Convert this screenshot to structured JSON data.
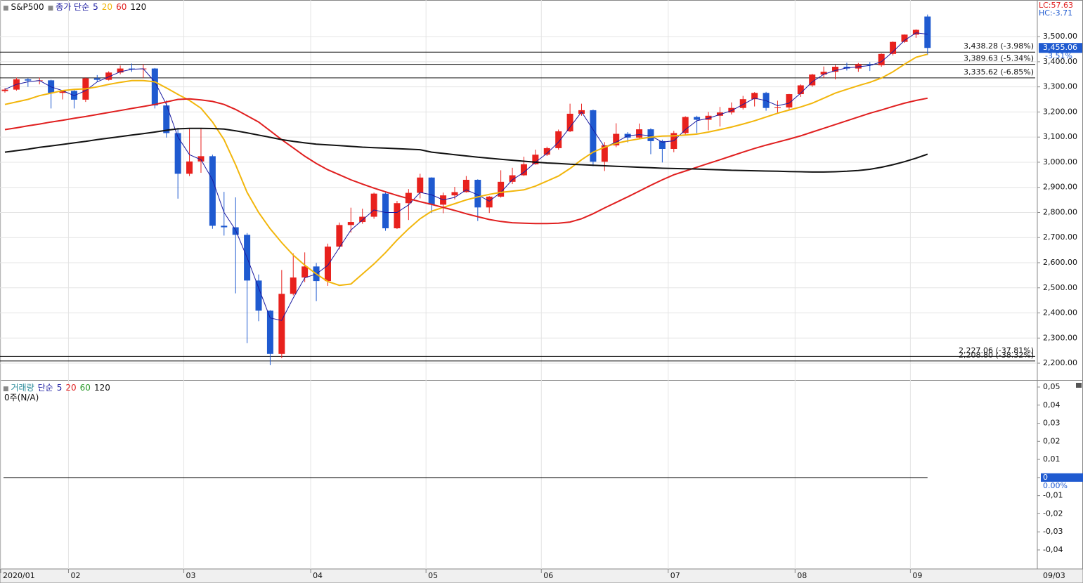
{
  "chart_data": [
    {
      "type": "candlestick",
      "title": "S&P500",
      "ma_label": "종가 단순",
      "categories": [
        "2020/01",
        null,
        null,
        null,
        null,
        null,
        "02",
        null,
        null,
        null,
        null,
        null,
        null,
        null,
        null,
        null,
        "03",
        null,
        null,
        null,
        null,
        null,
        null,
        null,
        null,
        null,
        null,
        "04",
        null,
        null,
        null,
        null,
        null,
        null,
        null,
        null,
        null,
        "05",
        null,
        null,
        null,
        null,
        null,
        null,
        null,
        null,
        null,
        "06",
        null,
        null,
        null,
        null,
        null,
        null,
        null,
        null,
        null,
        null,
        "07",
        null,
        null,
        null,
        null,
        null,
        null,
        null,
        null,
        null,
        null,
        "08",
        null,
        null,
        null,
        null,
        null,
        null,
        null,
        null,
        null,
        "09",
        null
      ],
      "open": [
        3283,
        3289,
        3330,
        3325,
        3326,
        3276,
        3284,
        3249,
        3334,
        3328,
        3357,
        3373,
        3370,
        3373,
        3226,
        3116,
        2954,
        3003,
        3024,
        2747,
        2741,
        2711,
        2529,
        2409,
        2237,
        2476,
        2541,
        2585,
        2527,
        2664,
        2750,
        2762,
        2783,
        2875,
        2737,
        2837,
        2878,
        2939,
        2831,
        2868,
        2881,
        2930,
        2820,
        2863,
        2922,
        2948,
        2992,
        3030,
        3056,
        3123,
        3193,
        3207,
        3002,
        3067,
        3113,
        3098,
        3131,
        3084,
        3053,
        3116,
        3180,
        3169,
        3185,
        3198,
        3216,
        3251,
        3276,
        3216,
        3218,
        3271,
        3306,
        3349,
        3360,
        3380,
        3373,
        3390,
        3386,
        3431,
        3479,
        3508,
        3580
      ],
      "high": [
        3295,
        3337,
        3335,
        3337,
        3328,
        3286,
        3287,
        3338,
        3347,
        3362,
        3385,
        3393,
        3390,
        3375,
        3246,
        3137,
        3136,
        3137,
        3030,
        2882,
        2860,
        2718,
        2553,
        2411,
        2571,
        2637,
        2641,
        2599,
        2676,
        2760,
        2819,
        2815,
        2879,
        2879,
        2846,
        2893,
        2954,
        2940,
        2879,
        2902,
        2945,
        2932,
        2865,
        2968,
        2978,
        3022,
        3050,
        3062,
        3130,
        3233,
        3233,
        3210,
        3080,
        3155,
        3120,
        3154,
        3135,
        3090,
        3125,
        3183,
        3185,
        3200,
        3220,
        3238,
        3264,
        3279,
        3280,
        3245,
        3272,
        3310,
        3352,
        3381,
        3387,
        3396,
        3395,
        3399,
        3433,
        3481,
        3509,
        3529,
        3588
      ],
      "low": [
        3277,
        3285,
        3300,
        3310,
        3214,
        3250,
        3214,
        3240,
        3320,
        3325,
        3350,
        3360,
        3335,
        3214,
        3098,
        2855,
        2945,
        2958,
        2735,
        2708,
        2478,
        2280,
        2367,
        2192,
        2220,
        2470,
        2523,
        2447,
        2508,
        2654,
        2720,
        2755,
        2775,
        2727,
        2734,
        2770,
        2856,
        2798,
        2797,
        2852,
        2879,
        2766,
        2798,
        2859,
        2913,
        2945,
        2990,
        3025,
        3050,
        3120,
        3185,
        2984,
        2965,
        3060,
        3079,
        3093,
        3032,
        2999,
        3040,
        3110,
        3116,
        3127,
        3142,
        3190,
        3210,
        3222,
        3205,
        3195,
        3210,
        3260,
        3300,
        3335,
        3330,
        3365,
        3360,
        3363,
        3380,
        3425,
        3475,
        3495,
        3427
      ],
      "close": [
        3289,
        3330,
        3325,
        3326,
        3276,
        3284,
        3249,
        3334,
        3328,
        3357,
        3373,
        3370,
        3373,
        3226,
        3116,
        2954,
        3003,
        3024,
        2747,
        2741,
        2711,
        2529,
        2409,
        2237,
        2476,
        2541,
        2585,
        2527,
        2664,
        2750,
        2762,
        2783,
        2875,
        2737,
        2837,
        2878,
        2939,
        2831,
        2868,
        2881,
        2930,
        2820,
        2863,
        2922,
        2948,
        2992,
        3030,
        3056,
        3123,
        3193,
        3207,
        3002,
        3067,
        3113,
        3098,
        3131,
        3084,
        3053,
        3116,
        3180,
        3169,
        3185,
        3198,
        3216,
        3251,
        3276,
        3216,
        3218,
        3271,
        3306,
        3349,
        3360,
        3380,
        3373,
        3390,
        3386,
        3431,
        3479,
        3508,
        3527,
        3455
      ],
      "up_color": "#e8211d",
      "down_color": "#1f5ad0",
      "series": [
        {
          "name": "5",
          "color": "#1a1aa0",
          "values": [
            3290,
            3310,
            3320,
            3325,
            3300,
            3285,
            3265,
            3285,
            3320,
            3340,
            3360,
            3370,
            3372,
            3320,
            3230,
            3100,
            3030,
            3010,
            2930,
            2800,
            2730,
            2620,
            2500,
            2380,
            2370,
            2460,
            2540,
            2555,
            2590,
            2660,
            2730,
            2770,
            2810,
            2800,
            2800,
            2830,
            2880,
            2870,
            2850,
            2860,
            2890,
            2870,
            2845,
            2880,
            2930,
            2960,
            3000,
            3035,
            3080,
            3140,
            3200,
            3130,
            3060,
            3080,
            3105,
            3110,
            3105,
            3080,
            3085,
            3130,
            3165,
            3175,
            3190,
            3205,
            3230,
            3255,
            3245,
            3225,
            3235,
            3275,
            3320,
            3350,
            3365,
            3375,
            3380,
            3385,
            3400,
            3440,
            3485,
            3515,
            3510
          ]
        },
        {
          "name": "20",
          "color": "#f2b60c",
          "values": [
            3230,
            3240,
            3250,
            3265,
            3275,
            3285,
            3290,
            3292,
            3300,
            3310,
            3318,
            3325,
            3325,
            3320,
            3296,
            3270,
            3246,
            3215,
            3160,
            3090,
            2990,
            2880,
            2800,
            2735,
            2680,
            2630,
            2590,
            2555,
            2525,
            2510,
            2515,
            2555,
            2595,
            2640,
            2690,
            2735,
            2775,
            2805,
            2820,
            2835,
            2850,
            2862,
            2872,
            2880,
            2885,
            2890,
            2905,
            2925,
            2945,
            2975,
            3010,
            3040,
            3060,
            3075,
            3085,
            3093,
            3100,
            3104,
            3105,
            3108,
            3112,
            3120,
            3130,
            3140,
            3152,
            3165,
            3180,
            3195,
            3208,
            3220,
            3235,
            3255,
            3275,
            3290,
            3305,
            3318,
            3335,
            3360,
            3390,
            3418,
            3430
          ]
        },
        {
          "name": "60",
          "color": "#e01f1f",
          "values": [
            3130,
            3137,
            3145,
            3152,
            3160,
            3167,
            3175,
            3182,
            3190,
            3198,
            3206,
            3214,
            3222,
            3230,
            3240,
            3250,
            3252,
            3248,
            3242,
            3230,
            3210,
            3185,
            3160,
            3125,
            3090,
            3057,
            3024,
            2995,
            2970,
            2950,
            2930,
            2913,
            2897,
            2882,
            2868,
            2855,
            2843,
            2832,
            2820,
            2808,
            2795,
            2783,
            2772,
            2764,
            2759,
            2757,
            2756,
            2756,
            2757,
            2762,
            2775,
            2795,
            2818,
            2840,
            2862,
            2885,
            2908,
            2930,
            2950,
            2965,
            2980,
            2995,
            3010,
            3025,
            3040,
            3055,
            3068,
            3080,
            3092,
            3105,
            3120,
            3135,
            3150,
            3165,
            3180,
            3195,
            3208,
            3222,
            3235,
            3246,
            3255
          ]
        },
        {
          "name": "120",
          "color": "#111111",
          "values": [
            3040,
            3046,
            3052,
            3059,
            3065,
            3071,
            3077,
            3083,
            3090,
            3096,
            3102,
            3108,
            3114,
            3120,
            3127,
            3133,
            3135,
            3135,
            3134,
            3132,
            3125,
            3117,
            3108,
            3099,
            3090,
            3083,
            3077,
            3072,
            3069,
            3066,
            3063,
            3060,
            3058,
            3056,
            3054,
            3052,
            3050,
            3040,
            3035,
            3030,
            3025,
            3020,
            3016,
            3012,
            3008,
            3004,
            3000,
            2997,
            2995,
            2992,
            2990,
            2988,
            2986,
            2984,
            2982,
            2980,
            2978,
            2976,
            2975,
            2974,
            2973,
            2971,
            2970,
            2968,
            2967,
            2966,
            2965,
            2964,
            2963,
            2962,
            2961,
            2961,
            2962,
            2964,
            2967,
            2972,
            2980,
            2990,
            3002,
            3016,
            3032
          ]
        }
      ],
      "ylim": [
        2133,
        3643
      ],
      "yticks": [
        {
          "value": 2200,
          "label": "2,200.00"
        },
        {
          "value": 2300,
          "label": "2,300.00"
        },
        {
          "value": 2400,
          "label": "2,400.00"
        },
        {
          "value": 2500,
          "label": "2,500.00"
        },
        {
          "value": 2600,
          "label": "2,600.00"
        },
        {
          "value": 2700,
          "label": "2,700.00"
        },
        {
          "value": 2800,
          "label": "2,800.00"
        },
        {
          "value": 2900,
          "label": "2,900.00"
        },
        {
          "value": 3000,
          "label": "3,000.00"
        },
        {
          "value": 3100,
          "label": "3,100.00"
        },
        {
          "value": 3200,
          "label": "3,200.00"
        },
        {
          "value": 3300,
          "label": "3,300.00"
        },
        {
          "value": 3400,
          "label": "3,400.00"
        },
        {
          "value": 3500,
          "label": "3,500.00"
        }
      ],
      "grid": true,
      "levels": [
        {
          "value": 3438.28,
          "label": "3,438.28 (-3.98%)"
        },
        {
          "value": 3389.63,
          "label": "3,389.63 (-5.34%)"
        },
        {
          "value": 3335.62,
          "label": "3,335.62 (-6.85%)"
        },
        {
          "value": 2227.06,
          "label": "2,227.06 (-37.81%)"
        },
        {
          "value": 2208.8,
          "label": "2,208.80 (-38.32%)"
        }
      ],
      "last_price": {
        "value": 3455.06,
        "label": "3,455.06"
      },
      "last_change": "-3.51%",
      "lc": "LC:57.63",
      "hc": "HC:-3.71",
      "last_date": "09/03"
    },
    {
      "type": "volume",
      "title": "거래량",
      "ma_label": "단순",
      "status": "0주(N/A)",
      "series": [
        {
          "name": "5",
          "color": "#1a1aa0"
        },
        {
          "name": "20",
          "color": "#e01f1f"
        },
        {
          "name": "60",
          "color": "#2a9a2a"
        },
        {
          "name": "120",
          "color": "#111111"
        }
      ],
      "ylim": [
        -0.0505,
        0.0531
      ],
      "yticks": [
        {
          "value": 0.05,
          "label": "0,05"
        },
        {
          "value": 0.04,
          "label": "0,04"
        },
        {
          "value": 0.03,
          "label": "0,03"
        },
        {
          "value": 0.02,
          "label": "0,02"
        },
        {
          "value": 0.01,
          "label": "0,01"
        },
        0,
        {
          "value": -0.01,
          "label": "-0,01"
        },
        {
          "value": -0.02,
          "label": "-0,02"
        },
        {
          "value": -0.03,
          "label": "-0,03"
        },
        {
          "value": -0.04,
          "label": "-0,04"
        }
      ],
      "zero_change": "0.00%"
    }
  ]
}
